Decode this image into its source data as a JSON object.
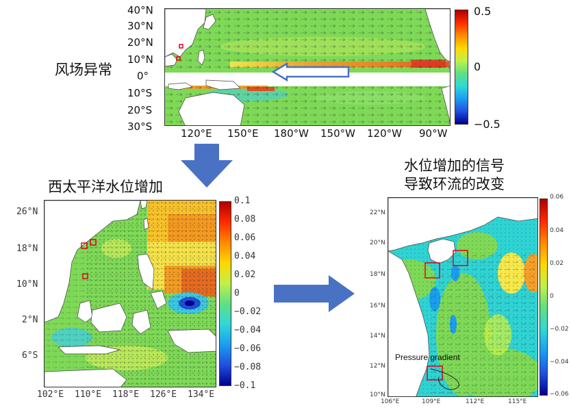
{
  "top": {
    "title": "风场异常",
    "lat_ticks": [
      "40°N",
      "30°N",
      "20°N",
      "10°N",
      "0°",
      "10°S",
      "20°S",
      "30°S"
    ],
    "lon_ticks": [
      "120°E",
      "150°E",
      "180°W",
      "150°W",
      "120°W",
      "90°W"
    ],
    "cbar_ticks": [
      "0.5",
      "0",
      "−0.5"
    ]
  },
  "left": {
    "title": "西太平洋水位增加",
    "lat_ticks": [
      "26°N",
      "18°N",
      "10°N",
      "2°N",
      "6°S"
    ],
    "lon_ticks": [
      "102°E",
      "110°E",
      "118°E",
      "126°E",
      "134°E"
    ],
    "cbar_ticks": [
      "0.1",
      "0.08",
      "0.06",
      "0.04",
      "0.02",
      "0",
      "−0.02",
      "−0.04",
      "−0.06",
      "−0.08",
      "−0.1"
    ]
  },
  "right": {
    "title_line1": "水位增加的信号",
    "title_line2": "导致环流的改变",
    "annotation": "Pressure gradient",
    "lat_ticks": [
      "22°N",
      "20°N",
      "18°N",
      "16°N",
      "14°N",
      "12°N",
      "10°N"
    ],
    "lon_ticks": [
      "106°E",
      "109°E",
      "112°E",
      "115°E"
    ],
    "cbar_ticks": [
      "0.06",
      "0.04",
      "0.02",
      "0",
      "−0.02",
      "−0.04",
      "−0.06"
    ]
  },
  "colors": {
    "arrow_fill": "#4a72c4",
    "box_red": "#e0001a",
    "land": "#ffffff",
    "ocean_base": "#7ed957"
  }
}
